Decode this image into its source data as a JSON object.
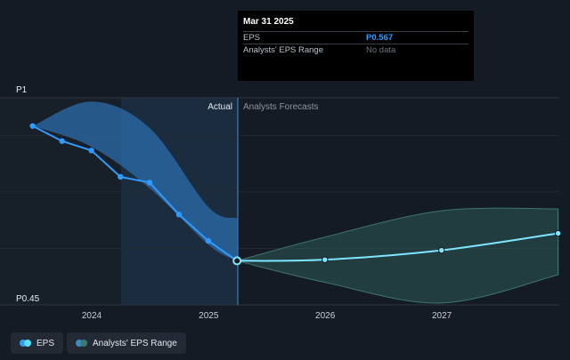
{
  "tooltip": {
    "date": "Mar 31 2025",
    "rows": [
      {
        "label": "EPS",
        "value": "P0.567"
      },
      {
        "label": "Analysts' EPS Range",
        "value": "No data"
      }
    ]
  },
  "sections": {
    "actual": "Actual",
    "forecast": "Analysts Forecasts"
  },
  "legend": [
    {
      "label": "EPS",
      "colors": [
        "#2f9bff",
        "#5ce1ff"
      ]
    },
    {
      "label": "Analysts' EPS Range",
      "colors": [
        "#3d8cc8",
        "#3d7a74"
      ]
    }
  ],
  "colors": {
    "eps_actual": "#2f9bff",
    "eps_forecast": "#7fe6ff",
    "range_actual": "#2d6fb0",
    "range_forecast": "#2e5a58",
    "background": "#151b24"
  },
  "chart_data": {
    "type": "line",
    "y_tick_labels": [
      "P1",
      "P0.45"
    ],
    "ylim": [
      0.45,
      1.0
    ],
    "x_tick_labels": [
      "2024",
      "2025",
      "2026",
      "2027"
    ],
    "series": [
      {
        "name": "EPS",
        "segment": "actual",
        "x": [
          "2023-06-30",
          "2023-09-30",
          "2023-12-31",
          "2024-03-31",
          "2024-06-30",
          "2024-09-30",
          "2024-12-31",
          "2025-03-31"
        ],
        "values": [
          0.925,
          0.885,
          0.86,
          0.79,
          0.775,
          0.69,
          0.62,
          0.567
        ]
      },
      {
        "name": "EPS",
        "segment": "forecast",
        "x": [
          "2025-03-31",
          "2025-12-31",
          "2026-12-31",
          "2027-12-31"
        ],
        "values": [
          0.567,
          0.57,
          0.595,
          0.64
        ]
      }
    ],
    "range": [
      {
        "segment": "actual",
        "x": [
          "2023-06-30",
          "2023-12-31",
          "2024-06-30",
          "2024-12-31",
          "2025-03-31"
        ],
        "high": [
          0.925,
          0.99,
          0.92,
          0.71,
          0.68
        ],
        "low": [
          0.925,
          0.87,
          0.76,
          0.61,
          0.567
        ]
      },
      {
        "segment": "forecast",
        "x": [
          "2025-03-31",
          "2025-12-31",
          "2026-12-31",
          "2027-12-31"
        ],
        "high": [
          0.567,
          0.63,
          0.7,
          0.705
        ],
        "low": [
          0.567,
          0.51,
          0.455,
          0.53
        ]
      }
    ]
  }
}
